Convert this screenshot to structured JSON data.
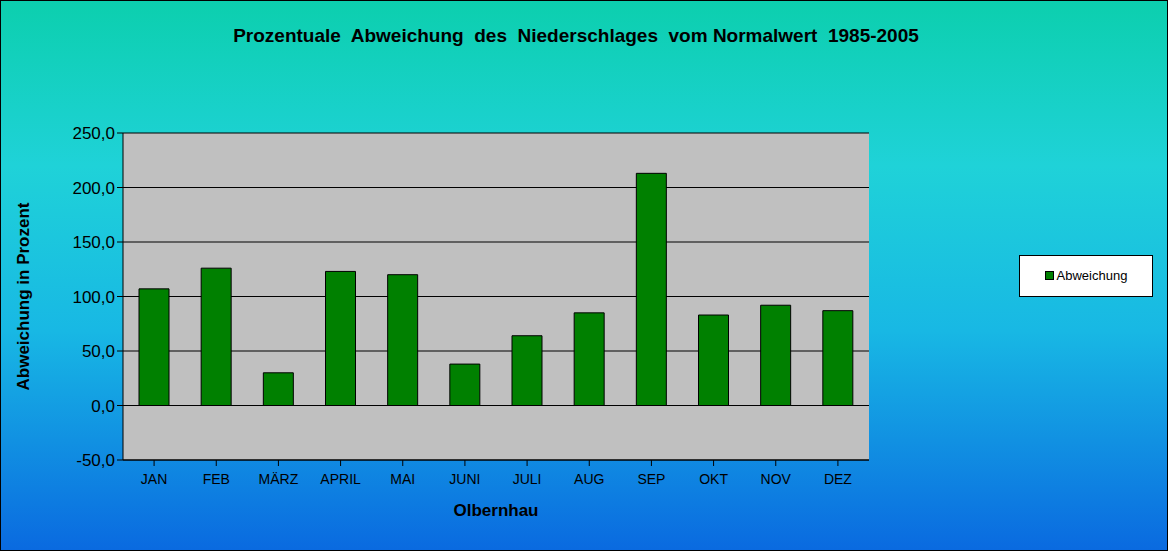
{
  "chart_data": {
    "type": "bar",
    "title": "Prozentuale  Abweichung  des  Niederschlages  vom Normalwert  1985-2005",
    "x_label": "Olbernhau",
    "y_label": "Abweichung in Prozent",
    "categories": [
      "JAN",
      "FEB",
      "MÄRZ",
      "APRIL",
      "MAI",
      "JUNI",
      "JULI",
      "AUG",
      "SEP",
      "OKT",
      "NOV",
      "DEZ"
    ],
    "series": [
      {
        "name": "Abweichung",
        "color": "#008000",
        "values": [
          107,
          126,
          30,
          123,
          120,
          38,
          64,
          85,
          213,
          83,
          92,
          87
        ]
      }
    ],
    "ylim": [
      -50,
      250
    ],
    "yticks": [
      {
        "value": -50,
        "label": "-50,0"
      },
      {
        "value": 0,
        "label": "0,0"
      },
      {
        "value": 50,
        "label": "50,0"
      },
      {
        "value": 100,
        "label": "100,0"
      },
      {
        "value": 150,
        "label": "150,0"
      },
      {
        "value": 200,
        "label": "200,0"
      },
      {
        "value": 250,
        "label": "250,0"
      }
    ],
    "grid": true,
    "legend": "right"
  }
}
